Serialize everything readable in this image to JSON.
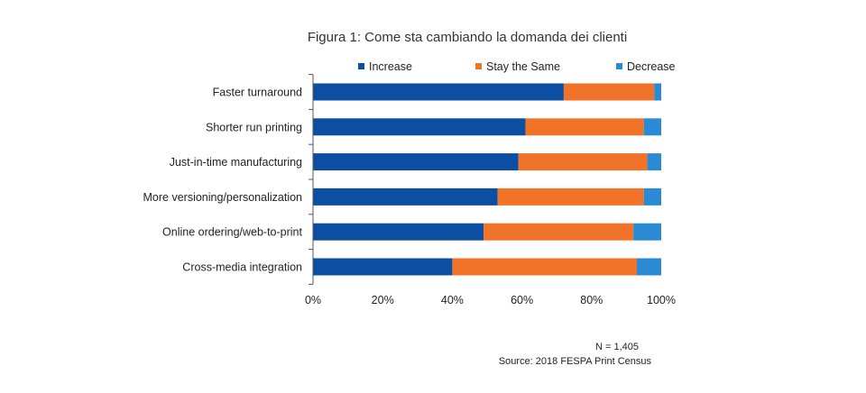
{
  "chart_data": {
    "type": "bar",
    "orientation": "horizontal",
    "stacked": true,
    "title": "Figura 1: Come sta cambiando la domanda dei clienti",
    "categories": [
      "Faster turnaround",
      "Shorter run printing",
      "Just-in-time manufacturing",
      "More versioning/personalization",
      "Online ordering/web-to-print",
      "Cross-media integration"
    ],
    "series": [
      {
        "name": "Increase",
        "color": "#0b4ea2",
        "values": [
          72,
          61,
          59,
          53,
          49,
          40
        ]
      },
      {
        "name": "Stay the Same",
        "color": "#f07329",
        "values": [
          26,
          34,
          37,
          42,
          43,
          53
        ]
      },
      {
        "name": "Decrease",
        "color": "#2a8ad4",
        "values": [
          2,
          5,
          4,
          5,
          8,
          7
        ]
      }
    ],
    "xlim": [
      0,
      100
    ],
    "x_ticks": [
      "0%",
      "20%",
      "40%",
      "60%",
      "80%",
      "100%"
    ],
    "legend_position": "top",
    "grid": false
  },
  "notes": {
    "n": "N = 1,405",
    "source": "Source: 2018 FESPA Print Census"
  }
}
